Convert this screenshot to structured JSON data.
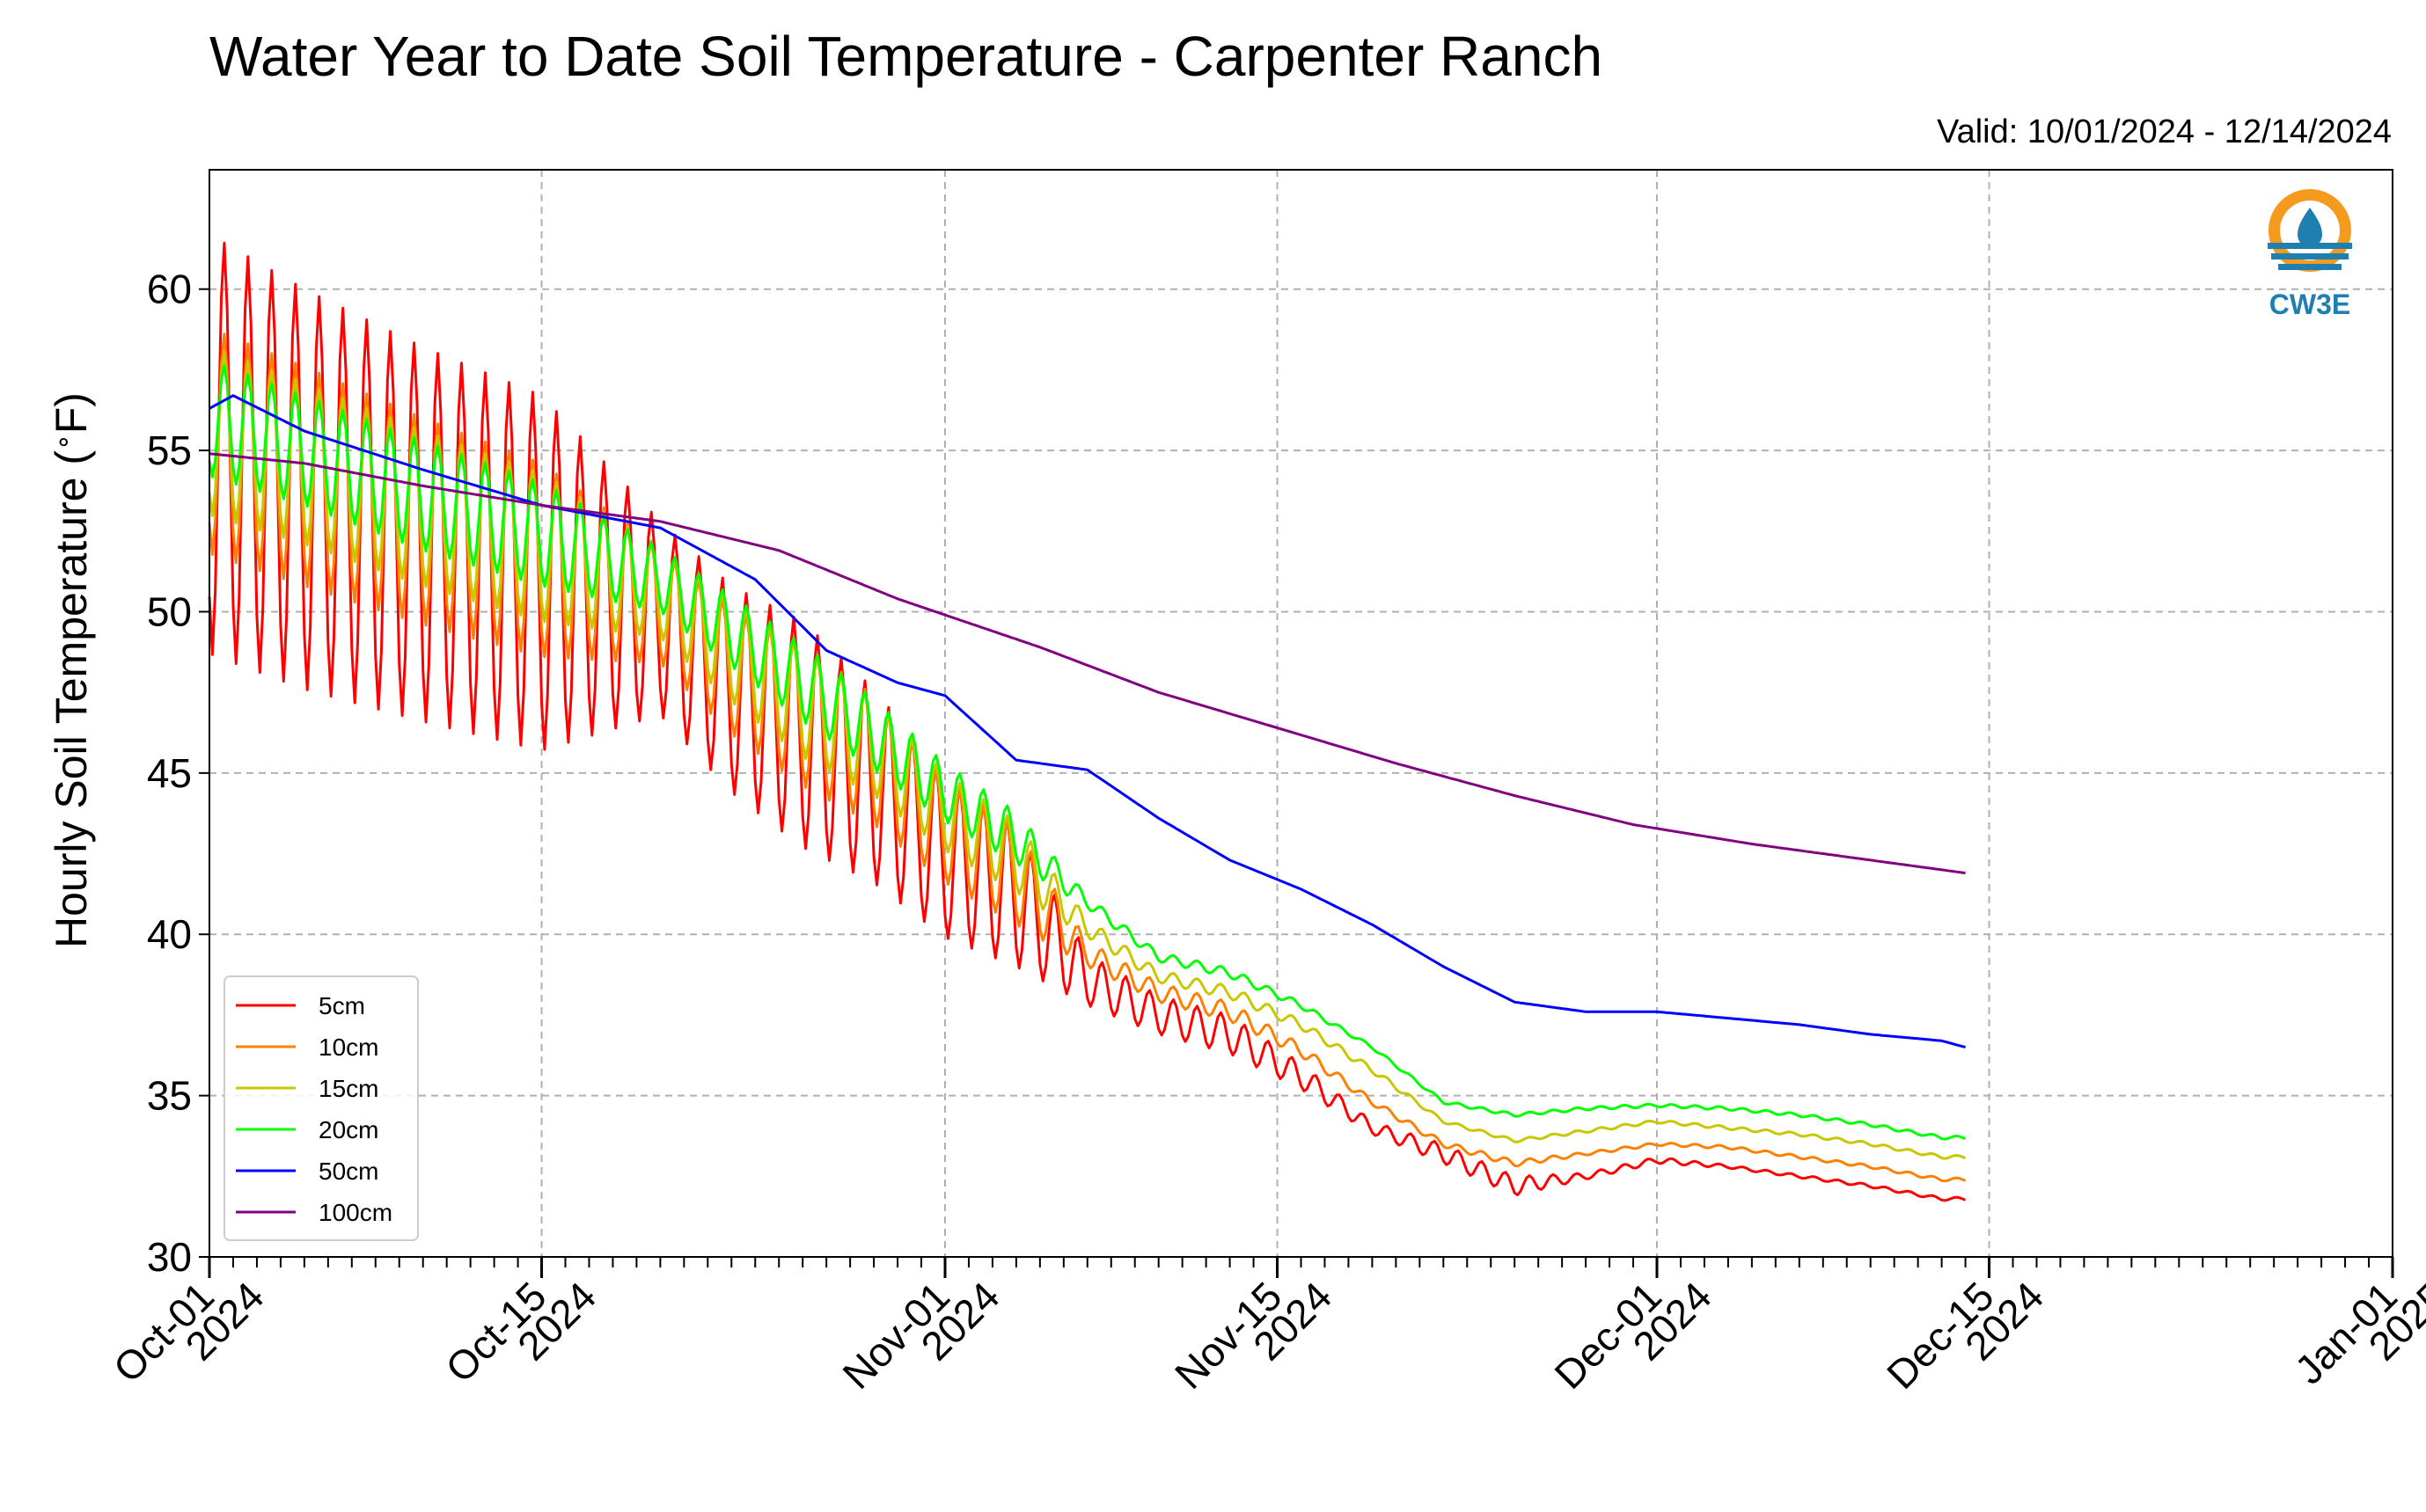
{
  "chart_data": {
    "type": "line",
    "title": "Water Year to Date Soil Temperature - Carpenter Ranch",
    "subtitle": "Valid: 10/01/2024 - 12/14/2024",
    "xlabel": "",
    "ylabel": "Hourly Soil Temperature (°F)",
    "ylabel_parts": [
      "Hourly Soil Temperature (",
      "∘",
      "F)"
    ],
    "ylim": [
      30,
      63.7
    ],
    "xlim": [
      "2024-10-01",
      "2025-01-01"
    ],
    "x_scale": "date",
    "grid": true,
    "legend_position": "lower-left",
    "logo_text": "CW3E",
    "y_ticks": [
      30,
      35,
      40,
      45,
      50,
      55,
      60
    ],
    "y_tick_labels": [
      "30",
      "35",
      "40",
      "45",
      "50",
      "55",
      "60"
    ],
    "x_ticks": [
      {
        "date": "2024-10-01",
        "label": [
          "Oct-01",
          "2024"
        ]
      },
      {
        "date": "2024-10-15",
        "label": [
          "Oct-15",
          "2024"
        ]
      },
      {
        "date": "2024-11-01",
        "label": [
          "Nov-01",
          "2024"
        ]
      },
      {
        "date": "2024-11-15",
        "label": [
          "Nov-15",
          "2024"
        ]
      },
      {
        "date": "2024-12-01",
        "label": [
          "Dec-01",
          "2024"
        ]
      },
      {
        "date": "2024-12-15",
        "label": [
          "Dec-15",
          "2024"
        ]
      },
      {
        "date": "2025-01-01",
        "label": [
          "Jan-01",
          "2025"
        ]
      }
    ],
    "series": [
      {
        "name": "5cm",
        "color": "#ff0000",
        "x": [
          "2024-10-01",
          "2024-10-05",
          "2024-10-10",
          "2024-10-15",
          "2024-10-20",
          "2024-10-23",
          "2024-10-26",
          "2024-10-29",
          "2024-11-01",
          "2024-11-04",
          "2024-11-07",
          "2024-11-10",
          "2024-11-13",
          "2024-11-16",
          "2024-11-19",
          "2024-11-22",
          "2024-11-25",
          "2024-11-28",
          "2024-12-01",
          "2024-12-04",
          "2024-12-07",
          "2024-12-10",
          "2024-12-13",
          "2024-12-14"
        ],
        "y": [
          55.2,
          53.8,
          52.4,
          51.2,
          49.8,
          47.6,
          46.2,
          44.6,
          42.4,
          41.2,
          38.6,
          37.5,
          36.9,
          35.6,
          34.0,
          33.2,
          32.2,
          32.5,
          33.0,
          32.8,
          32.5,
          32.2,
          31.8,
          31.8
        ],
        "amplitude": [
          6.5,
          6.2,
          5.8,
          5.5,
          3.0,
          3.2,
          3.5,
          3.0,
          2.5,
          2.2,
          0.8,
          0.6,
          0.6,
          0.4,
          0.2,
          0.3,
          0.3,
          0.1,
          0.1,
          0.05,
          0.05,
          0.05,
          0.05,
          0.05
        ]
      },
      {
        "name": "10cm",
        "color": "#ff8000",
        "x": [
          "2024-10-01",
          "2024-10-05",
          "2024-10-10",
          "2024-10-15",
          "2024-10-20",
          "2024-10-23",
          "2024-10-26",
          "2024-10-29",
          "2024-11-01",
          "2024-11-04",
          "2024-11-07",
          "2024-11-10",
          "2024-11-13",
          "2024-11-16",
          "2024-11-19",
          "2024-11-22",
          "2024-11-25",
          "2024-11-28",
          "2024-12-01",
          "2024-12-04",
          "2024-12-07",
          "2024-12-10",
          "2024-12-13",
          "2024-12-14"
        ],
        "y": [
          55.3,
          54.2,
          52.8,
          51.6,
          50.2,
          48.2,
          46.8,
          45.4,
          43.2,
          41.8,
          39.4,
          38.2,
          37.6,
          36.4,
          34.8,
          33.5,
          32.9,
          33.2,
          33.5,
          33.4,
          33.1,
          32.8,
          32.4,
          32.4
        ],
        "amplitude": [
          3.5,
          3.4,
          3.2,
          3.0,
          1.8,
          2.0,
          2.2,
          2.0,
          1.6,
          1.5,
          0.4,
          0.3,
          0.3,
          0.2,
          0.1,
          0.1,
          0.1,
          0.05,
          0.05,
          0.05,
          0.05,
          0.05,
          0.05,
          0.05
        ]
      },
      {
        "name": "15cm",
        "color": "#c8c800",
        "x": [
          "2024-10-01",
          "2024-10-05",
          "2024-10-10",
          "2024-10-15",
          "2024-10-20",
          "2024-10-23",
          "2024-10-26",
          "2024-10-29",
          "2024-11-01",
          "2024-11-04",
          "2024-11-07",
          "2024-11-10",
          "2024-11-13",
          "2024-11-16",
          "2024-11-19",
          "2024-11-22",
          "2024-11-25",
          "2024-11-28",
          "2024-12-01",
          "2024-12-04",
          "2024-12-07",
          "2024-12-10",
          "2024-12-13",
          "2024-12-14"
        ],
        "y": [
          55.6,
          54.6,
          53.2,
          52.0,
          50.6,
          48.8,
          47.2,
          45.8,
          43.8,
          42.4,
          40.2,
          38.7,
          38.2,
          37.2,
          35.8,
          34.2,
          33.6,
          33.9,
          34.2,
          34.0,
          33.8,
          33.5,
          33.1,
          33.1
        ],
        "amplitude": [
          2.6,
          2.5,
          2.4,
          2.3,
          1.4,
          1.6,
          1.7,
          1.5,
          1.2,
          1.1,
          0.3,
          0.2,
          0.2,
          0.15,
          0.1,
          0.05,
          0.05,
          0.05,
          0.05,
          0.05,
          0.05,
          0.05,
          0.05,
          0.05
        ]
      },
      {
        "name": "20cm",
        "color": "#00ff00",
        "x": [
          "2024-10-01",
          "2024-10-05",
          "2024-10-10",
          "2024-10-15",
          "2024-10-20",
          "2024-10-23",
          "2024-10-26",
          "2024-10-29",
          "2024-11-01",
          "2024-11-04",
          "2024-11-07",
          "2024-11-10",
          "2024-11-13",
          "2024-11-16",
          "2024-11-19",
          "2024-11-22",
          "2024-11-25",
          "2024-11-28",
          "2024-12-01",
          "2024-12-04",
          "2024-12-07",
          "2024-12-10",
          "2024-12-13",
          "2024-12-14"
        ],
        "y": [
          56.0,
          55.0,
          53.6,
          52.4,
          51.0,
          49.4,
          47.8,
          46.2,
          44.4,
          43.0,
          41.0,
          39.3,
          38.8,
          37.8,
          36.5,
          34.8,
          34.4,
          34.6,
          34.7,
          34.6,
          34.4,
          34.1,
          33.7,
          33.7
        ],
        "amplitude": [
          1.8,
          1.7,
          1.7,
          1.6,
          1.0,
          1.1,
          1.2,
          1.1,
          0.9,
          0.8,
          0.2,
          0.15,
          0.15,
          0.1,
          0.05,
          0.05,
          0.05,
          0.05,
          0.05,
          0.05,
          0.05,
          0.05,
          0.05,
          0.05
        ]
      },
      {
        "name": "50cm",
        "color": "#0000ff",
        "x": [
          "2024-10-01",
          "2024-10-02",
          "2024-10-05",
          "2024-10-10",
          "2024-10-15",
          "2024-10-20",
          "2024-10-24",
          "2024-10-27",
          "2024-10-30",
          "2024-11-01",
          "2024-11-04",
          "2024-11-07",
          "2024-11-10",
          "2024-11-13",
          "2024-11-16",
          "2024-11-19",
          "2024-11-22",
          "2024-11-25",
          "2024-11-28",
          "2024-12-01",
          "2024-12-04",
          "2024-12-07",
          "2024-12-10",
          "2024-12-13",
          "2024-12-14"
        ],
        "y": [
          56.3,
          56.7,
          55.6,
          54.4,
          53.3,
          52.6,
          51.0,
          48.8,
          47.8,
          47.4,
          45.4,
          45.1,
          43.6,
          42.3,
          41.4,
          40.3,
          39.0,
          37.9,
          37.6,
          37.6,
          37.4,
          37.2,
          36.9,
          36.7,
          36.5
        ],
        "amplitude": [
          0,
          0,
          0,
          0,
          0,
          0,
          0,
          0,
          0,
          0,
          0,
          0,
          0,
          0,
          0,
          0,
          0,
          0,
          0,
          0,
          0,
          0,
          0,
          0,
          0
        ]
      },
      {
        "name": "100cm",
        "color": "#800080",
        "x": [
          "2024-10-01",
          "2024-10-05",
          "2024-10-10",
          "2024-10-15",
          "2024-10-20",
          "2024-10-25",
          "2024-10-30",
          "2024-11-01",
          "2024-11-05",
          "2024-11-10",
          "2024-11-15",
          "2024-11-20",
          "2024-11-25",
          "2024-11-30",
          "2024-12-05",
          "2024-12-10",
          "2024-12-14"
        ],
        "y": [
          54.9,
          54.6,
          53.9,
          53.3,
          52.8,
          51.9,
          50.4,
          49.9,
          48.9,
          47.5,
          46.4,
          45.3,
          44.3,
          43.4,
          42.8,
          42.3,
          41.9
        ],
        "amplitude": [
          0,
          0,
          0,
          0,
          0,
          0,
          0,
          0,
          0,
          0,
          0,
          0,
          0,
          0,
          0,
          0,
          0
        ]
      }
    ]
  }
}
